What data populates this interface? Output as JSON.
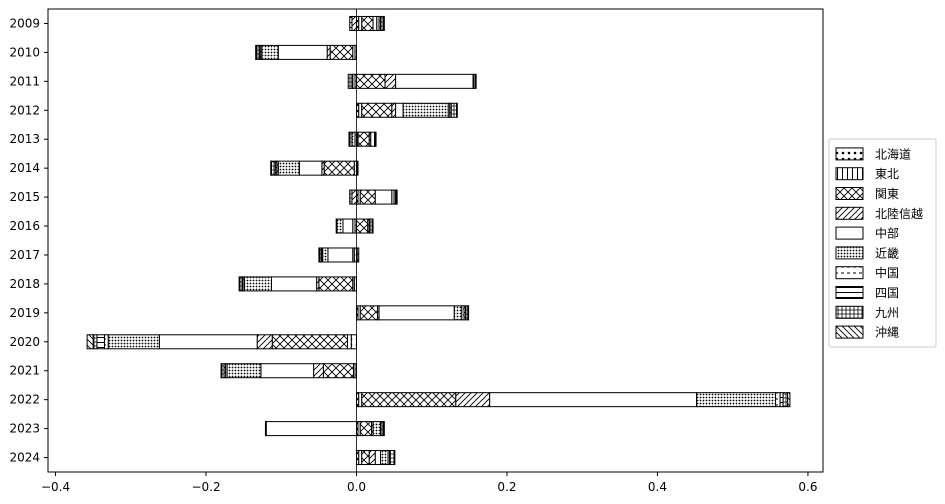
{
  "chart_data": {
    "type": "bar",
    "orientation": "horizontal",
    "stacked": true,
    "title": "",
    "xlabel": "",
    "ylabel": "",
    "xlim": [
      -0.41,
      0.62
    ],
    "x_ticks": [
      -0.4,
      -0.2,
      0.0,
      0.2,
      0.4,
      0.6
    ],
    "x_tick_labels": [
      "−0.4",
      "−0.2",
      "0.0",
      "0.2",
      "0.4",
      "0.6"
    ],
    "grid": false,
    "zero_line": true,
    "legend_position": "center-right, outside plot",
    "categories": [
      "2009",
      "2010",
      "2011",
      "2012",
      "2013",
      "2014",
      "2015",
      "2016",
      "2017",
      "2018",
      "2019",
      "2020",
      "2021",
      "2022",
      "2023",
      "2024"
    ],
    "series": [
      {
        "name": "北海道",
        "hatch": "dots",
        "values": [
          0.003,
          -0.002,
          -0.002,
          0.003,
          -0.002,
          -0.003,
          0.002,
          -0.002,
          -0.003,
          -0.003,
          0.002,
          -0.007,
          -0.002,
          0.003,
          0.002,
          0.003
        ]
      },
      {
        "name": "東北",
        "hatch": "vertical",
        "values": [
          0.004,
          -0.003,
          -0.003,
          0.004,
          0.002,
          0.002,
          0.003,
          -0.003,
          -0.002,
          -0.002,
          0.003,
          -0.005,
          -0.002,
          0.004,
          0.003,
          0.004
        ]
      },
      {
        "name": "関東",
        "hatch": "crosshatch",
        "values": [
          0.015,
          -0.03,
          0.038,
          0.04,
          0.015,
          -0.04,
          0.02,
          0.015,
          0.001,
          -0.045,
          0.023,
          -0.1,
          -0.04,
          0.125,
          0.015,
          0.01
        ]
      },
      {
        "name": "北陸信越",
        "hatch": "diagonal",
        "values": [
          -0.006,
          -0.004,
          0.014,
          0.005,
          0.002,
          -0.003,
          -0.006,
          0.002,
          0.002,
          -0.003,
          0.002,
          -0.02,
          -0.013,
          0.045,
          0.002,
          0.008
        ]
      },
      {
        "name": "中部",
        "hatch": "none",
        "values": [
          0.005,
          -0.065,
          0.103,
          0.01,
          0.005,
          -0.03,
          0.022,
          -0.013,
          -0.033,
          -0.06,
          0.1,
          -0.13,
          -0.07,
          0.275,
          -0.12,
          0.007
        ]
      },
      {
        "name": "近畿",
        "hatch": "dense-dots",
        "values": [
          0.003,
          -0.022,
          0.001,
          0.06,
          -0.004,
          -0.028,
          0.003,
          -0.008,
          -0.007,
          -0.036,
          0.01,
          -0.068,
          -0.045,
          0.105,
          0.01,
          0.01
        ]
      },
      {
        "name": "中国",
        "hatch": "dashes",
        "values": [
          0.002,
          -0.002,
          0.002,
          0.002,
          0.001,
          -0.002,
          0.002,
          0.001,
          -0.001,
          -0.002,
          0.003,
          -0.005,
          -0.002,
          0.006,
          0.002,
          0.002
        ]
      },
      {
        "name": "四国",
        "hatch": "horizontal",
        "values": [
          -0.003,
          -0.001,
          -0.001,
          0.002,
          0.001,
          -0.002,
          0.001,
          -0.001,
          -0.001,
          -0.001,
          0.002,
          -0.01,
          -0.002,
          0.004,
          -0.001,
          0.001
        ]
      },
      {
        "name": "九州",
        "hatch": "grid",
        "values": [
          0.004,
          -0.004,
          -0.005,
          0.007,
          -0.003,
          -0.005,
          -0.003,
          0.003,
          -0.002,
          -0.003,
          0.003,
          -0.005,
          -0.003,
          0.006,
          0.002,
          0.005
        ]
      },
      {
        "name": "沖縄",
        "hatch": "backslash",
        "values": [
          0.001,
          -0.001,
          0.001,
          0.001,
          -0.001,
          -0.001,
          0.001,
          0.001,
          -0.001,
          -0.001,
          0.001,
          -0.008,
          -0.001,
          0.003,
          0.001,
          0.001
        ]
      }
    ]
  }
}
